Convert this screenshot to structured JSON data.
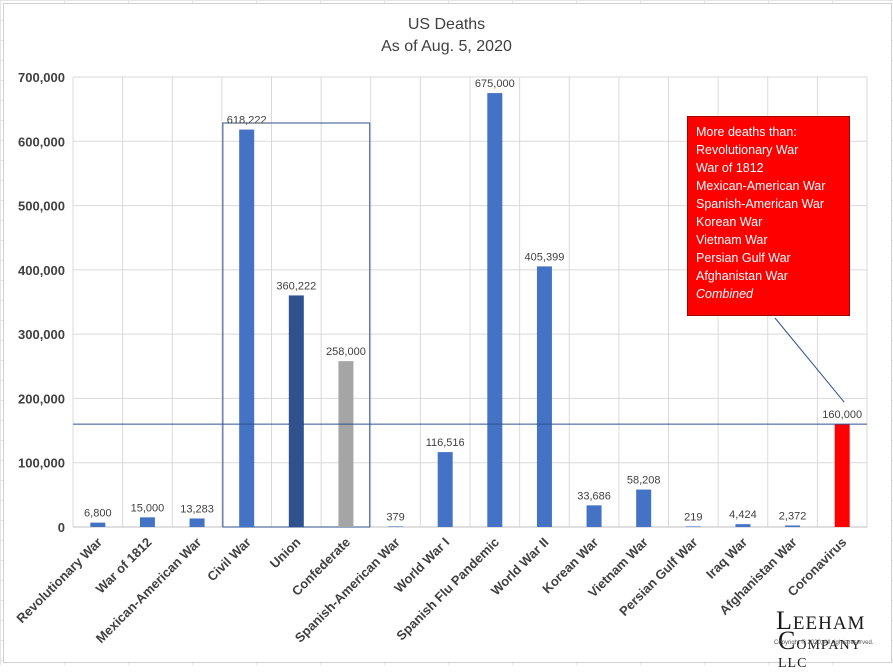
{
  "chart_data": {
    "type": "bar",
    "title": "US Deaths",
    "subtitle": "As of Aug. 5, 2020",
    "xlabel": "",
    "ylabel": "",
    "ylim": [
      0,
      700000
    ],
    "yticks": [
      0,
      100000,
      200000,
      300000,
      400000,
      500000,
      600000,
      700000
    ],
    "ytick_labels": [
      "0",
      "100,000",
      "200,000",
      "300,000",
      "400,000",
      "500,000",
      "600,000",
      "700,000"
    ],
    "grid": true,
    "legend": "none",
    "categories": [
      "Revolutionary War",
      "War of 1812",
      "Mexican-American War",
      "Civil War",
      "Union",
      "Confederate",
      "Spanish-American War",
      "World War I",
      "Spanish Flu Pandemic",
      "World War II",
      "Korean War",
      "Vietnam War",
      "Persian Gulf War",
      "Iraq War",
      "Afghanistan War",
      "Coronavirus"
    ],
    "values": [
      6800,
      15000,
      13283,
      618222,
      360222,
      258000,
      379,
      116516,
      675000,
      405399,
      33686,
      58208,
      219,
      4424,
      2372,
      160000
    ],
    "data_labels": [
      "6,800",
      "15,000",
      "13,283",
      "618,222",
      "360,222",
      "258,000",
      "379",
      "116,516",
      "675,000",
      "405,399",
      "33,686",
      "58,208",
      "219",
      "4,424",
      "2,372",
      "160,000"
    ],
    "bar_colors": [
      "#4472c4",
      "#4472c4",
      "#4472c4",
      "#4472c4",
      "#2f528f",
      "#a5a5a5",
      "#4472c4",
      "#4472c4",
      "#4472c4",
      "#4472c4",
      "#4472c4",
      "#4472c4",
      "#4472c4",
      "#4472c4",
      "#4472c4",
      "#ff0000"
    ],
    "reference_line": 160000,
    "annotation": {
      "lines": [
        "More deaths than:",
        "Revolutionary War",
        "War of 1812",
        "Mexican-American War",
        "Spanish-American War",
        "Korean War",
        "Vietnam War",
        "Persian Gulf War",
        "Afghanistan War"
      ],
      "last_line": "Combined",
      "background": "#ff0000"
    }
  },
  "colors": {
    "axis_text": "#404040",
    "gridline": "#d9d9d9",
    "civil_war_box": "#2f528f",
    "reference_line": "#2f528f"
  },
  "logo": {
    "l1_big": "L",
    "l1_rest": "EEHAM",
    "l2_big": "C",
    "l2_rest": "OMPANY LLC",
    "copyright": "Copyright © 2020, All rights reserved."
  }
}
